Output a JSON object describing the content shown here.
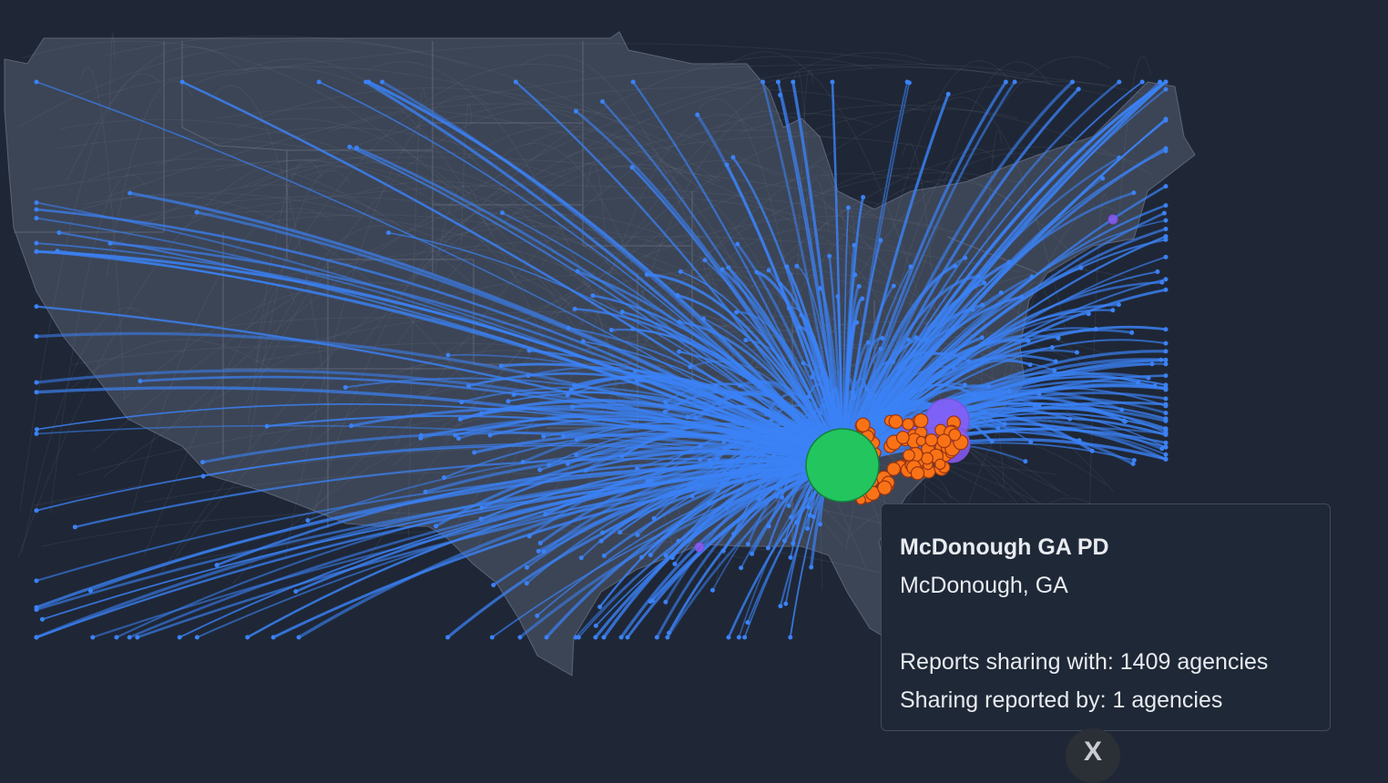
{
  "tooltip": {
    "title": "McDonough GA PD",
    "location": "McDonough, GA",
    "lines": [
      "Reports sharing with: 1409 agencies",
      "Sharing reported by: 1 agencies"
    ]
  },
  "close_button": {
    "label": "X"
  }
}
